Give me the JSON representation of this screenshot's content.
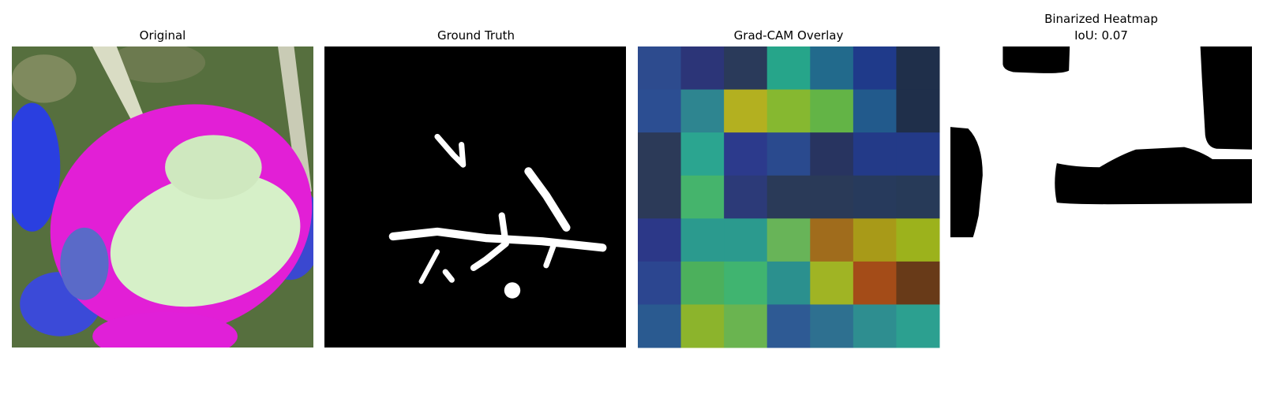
{
  "panels": [
    {
      "title": [
        "Original"
      ]
    },
    {
      "title": [
        "Ground Truth"
      ]
    },
    {
      "title": [
        "Grad-CAM Overlay"
      ]
    },
    {
      "title": [
        "Binarized Heatmap",
        "IoU: 0.07"
      ]
    }
  ]
}
